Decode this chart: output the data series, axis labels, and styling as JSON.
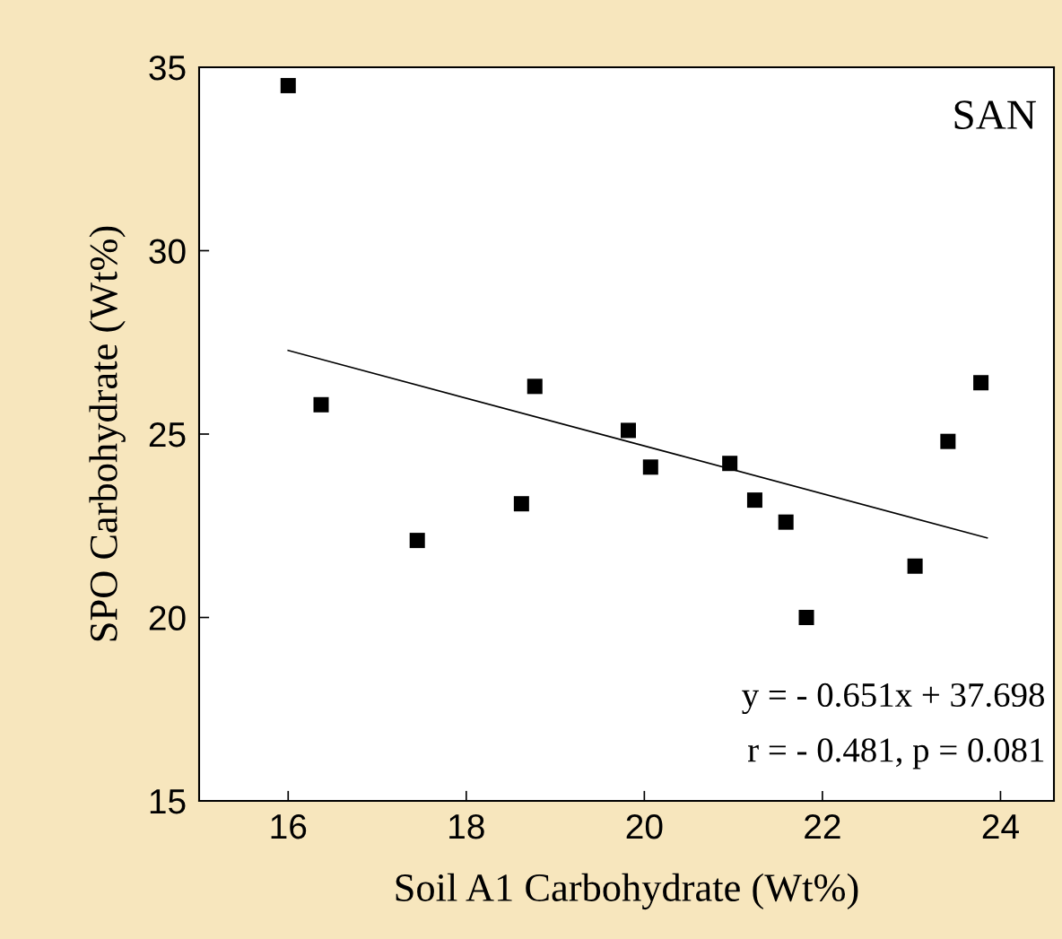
{
  "chart_data": {
    "type": "scatter",
    "xlabel": "Soil A1 Carbohydrate (Wt%)",
    "ylabel": "SPO Carbohydrate (Wt%)",
    "xlim": [
      15,
      24.6
    ],
    "xticks": [
      16,
      18,
      20,
      22,
      24
    ],
    "ylim": [
      15,
      35
    ],
    "yticks": [
      15,
      20,
      25,
      30,
      35
    ],
    "grid": false,
    "series": [
      {
        "marker": "square",
        "color": "#000000",
        "x": [
          16.0,
          16.37,
          17.45,
          18.62,
          18.77,
          19.82,
          20.07,
          20.96,
          21.24,
          21.59,
          21.82,
          23.04,
          23.41,
          23.78
        ],
        "values": [
          34.5,
          25.8,
          22.1,
          23.1,
          26.3,
          25.1,
          24.1,
          24.2,
          23.2,
          22.6,
          20.0,
          21.4,
          24.8,
          26.4
        ]
      },
      {
        "type": "line",
        "color": "#000000",
        "line_style": "solid",
        "x": [
          16.0,
          23.85
        ],
        "values": [
          27.28,
          22.17
        ]
      }
    ],
    "annotations": [
      "SAN",
      "y = - 0.651x + 37.698",
      "r = - 0.481, p = 0.081"
    ]
  }
}
